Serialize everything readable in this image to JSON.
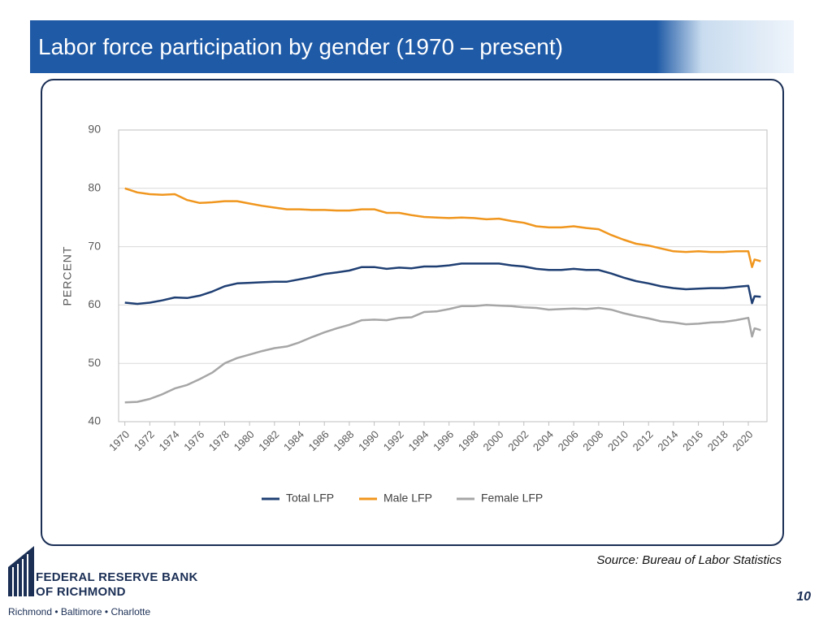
{
  "title": "Labor force participation by gender (1970 – present)",
  "source": "Source: Bureau of Labor Statistics",
  "page_number": 10,
  "logo": {
    "line1": "FEDERAL RESERVE BANK",
    "line2": "OF RICHMOND",
    "tagline": "Richmond • Baltimore • Charlotte"
  },
  "chart_data": {
    "type": "line",
    "y_label": "PERCENT",
    "x": [
      1970,
      1971,
      1972,
      1973,
      1974,
      1975,
      1976,
      1977,
      1978,
      1979,
      1980,
      1981,
      1982,
      1983,
      1984,
      1985,
      1986,
      1987,
      1988,
      1989,
      1990,
      1991,
      1992,
      1993,
      1994,
      1995,
      1996,
      1997,
      1998,
      1999,
      2000,
      2001,
      2002,
      2003,
      2004,
      2005,
      2006,
      2007,
      2008,
      2009,
      2010,
      2011,
      2012,
      2013,
      2014,
      2015,
      2016,
      2017,
      2018,
      2019,
      2020,
      2020.3,
      2020.5,
      2021
    ],
    "xlim": [
      1969.5,
      2021.5
    ],
    "xticks": [
      1970,
      1972,
      1974,
      1976,
      1978,
      1980,
      1982,
      1984,
      1986,
      1988,
      1990,
      1992,
      1994,
      1996,
      1998,
      2000,
      2002,
      2004,
      2006,
      2008,
      2010,
      2012,
      2014,
      2016,
      2018,
      2020
    ],
    "ylim": [
      40,
      90
    ],
    "yticks": [
      40,
      50,
      60,
      70,
      80,
      90
    ],
    "grid": true,
    "legend": "bottom",
    "series": [
      {
        "name": "Total LFP",
        "color": "#1f3f73",
        "values": [
          60.4,
          60.2,
          60.4,
          60.8,
          61.3,
          61.2,
          61.6,
          62.3,
          63.2,
          63.7,
          63.8,
          63.9,
          64.0,
          64.0,
          64.4,
          64.8,
          65.3,
          65.6,
          65.9,
          66.5,
          66.5,
          66.2,
          66.4,
          66.3,
          66.6,
          66.6,
          66.8,
          67.1,
          67.1,
          67.1,
          67.1,
          66.8,
          66.6,
          66.2,
          66.0,
          66.0,
          66.2,
          66.0,
          66.0,
          65.4,
          64.7,
          64.1,
          63.7,
          63.2,
          62.9,
          62.7,
          62.8,
          62.9,
          62.9,
          63.1,
          63.3,
          60.3,
          61.5,
          61.4
        ]
      },
      {
        "name": "Male LFP",
        "color": "#f0961e",
        "values": [
          80.0,
          79.3,
          79.0,
          78.9,
          79.0,
          78.0,
          77.5,
          77.6,
          77.8,
          77.8,
          77.4,
          77.0,
          76.7,
          76.4,
          76.4,
          76.3,
          76.3,
          76.2,
          76.2,
          76.4,
          76.4,
          75.8,
          75.8,
          75.4,
          75.1,
          75.0,
          74.9,
          75.0,
          74.9,
          74.7,
          74.8,
          74.4,
          74.1,
          73.5,
          73.3,
          73.3,
          73.5,
          73.2,
          73.0,
          72.0,
          71.2,
          70.5,
          70.2,
          69.7,
          69.2,
          69.1,
          69.2,
          69.1,
          69.1,
          69.2,
          69.2,
          66.5,
          67.8,
          67.5
        ]
      },
      {
        "name": "Female LFP",
        "color": "#a6a6a6",
        "values": [
          43.3,
          43.4,
          43.9,
          44.7,
          45.7,
          46.3,
          47.3,
          48.4,
          50.0,
          50.9,
          51.5,
          52.1,
          52.6,
          52.9,
          53.6,
          54.5,
          55.3,
          56.0,
          56.6,
          57.4,
          57.5,
          57.4,
          57.8,
          57.9,
          58.8,
          58.9,
          59.3,
          59.8,
          59.8,
          60.0,
          59.9,
          59.8,
          59.6,
          59.5,
          59.2,
          59.3,
          59.4,
          59.3,
          59.5,
          59.2,
          58.6,
          58.1,
          57.7,
          57.2,
          57.0,
          56.7,
          56.8,
          57.0,
          57.1,
          57.4,
          57.8,
          54.6,
          56.0,
          55.7
        ]
      }
    ]
  }
}
